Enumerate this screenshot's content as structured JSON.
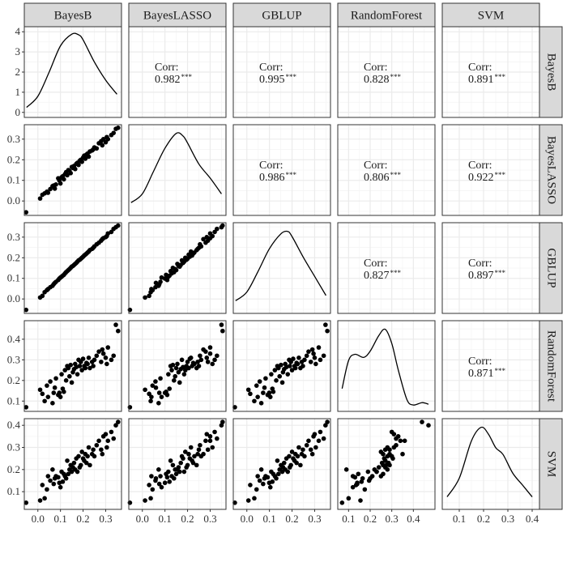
{
  "colors": {
    "strip_fill": "#d9d9d9",
    "strip_border": "#333333",
    "panel_border": "#333333",
    "grid_major": "#ebebeb",
    "grid_minor": "#f5f5f5",
    "ink": "#000000",
    "text": "#1a1a1a"
  },
  "chart_data": {
    "type": "scatter",
    "variables": [
      "BayesB",
      "BayesLASSO",
      "GBLUP",
      "RandomForest",
      "SVM"
    ],
    "corr_label": "Corr:",
    "significance": "***",
    "correlations": [
      {
        "row": "BayesB",
        "col": "BayesLASSO",
        "value": "0.982"
      },
      {
        "row": "BayesB",
        "col": "GBLUP",
        "value": "0.995"
      },
      {
        "row": "BayesB",
        "col": "RandomForest",
        "value": "0.828"
      },
      {
        "row": "BayesB",
        "col": "SVM",
        "value": "0.891"
      },
      {
        "row": "BayesLASSO",
        "col": "GBLUP",
        "value": "0.986"
      },
      {
        "row": "BayesLASSO",
        "col": "RandomForest",
        "value": "0.806"
      },
      {
        "row": "BayesLASSO",
        "col": "SVM",
        "value": "0.922"
      },
      {
        "row": "GBLUP",
        "col": "RandomForest",
        "value": "0.827"
      },
      {
        "row": "GBLUP",
        "col": "SVM",
        "value": "0.897"
      },
      {
        "row": "RandomForest",
        "col": "SVM",
        "value": "0.871"
      }
    ],
    "x_axes": [
      {
        "variable": "BayesB",
        "range": [
          -0.06,
          0.37
        ],
        "ticks": [
          "0.0",
          "0.1",
          "0.2",
          "0.3"
        ]
      },
      {
        "variable": "BayesLASSO",
        "range": [
          -0.06,
          0.37
        ],
        "ticks": [
          "0.0",
          "0.1",
          "0.2",
          "0.3"
        ]
      },
      {
        "variable": "GBLUP",
        "range": [
          -0.06,
          0.37
        ],
        "ticks": [
          "0.0",
          "0.1",
          "0.2",
          "0.3"
        ]
      },
      {
        "variable": "RandomForest",
        "range": [
          0.05,
          0.5
        ],
        "ticks": [
          "0.1",
          "0.2",
          "0.3",
          "0.4"
        ]
      },
      {
        "variable": "SVM",
        "range": [
          0.03,
          0.43
        ],
        "ticks": [
          "0.1",
          "0.2",
          "0.3",
          "0.4"
        ]
      }
    ],
    "y_axes": [
      {
        "row": "BayesB",
        "range": [
          -0.25,
          4.25
        ],
        "ticks": [
          "0",
          "1",
          "2",
          "3",
          "4"
        ]
      },
      {
        "row": "BayesLASSO",
        "range": [
          -0.07,
          0.37
        ],
        "ticks": [
          "0.0",
          "0.1",
          "0.2",
          "0.3"
        ]
      },
      {
        "row": "GBLUP",
        "range": [
          -0.07,
          0.37
        ],
        "ticks": [
          "0.0",
          "0.1",
          "0.2",
          "0.3"
        ]
      },
      {
        "row": "RandomForest",
        "range": [
          0.05,
          0.49
        ],
        "ticks": [
          "0.1",
          "0.2",
          "0.3",
          "0.4"
        ]
      },
      {
        "row": "SVM",
        "range": [
          0.02,
          0.43
        ],
        "ticks": [
          "0.1",
          "0.2",
          "0.3",
          "0.4"
        ]
      }
    ],
    "densities": [
      {
        "variable": "BayesB",
        "x": [
          -0.05,
          0.0,
          0.05,
          0.1,
          0.15,
          0.18,
          0.2,
          0.25,
          0.3,
          0.35
        ],
        "y": [
          0.25,
          0.8,
          2.0,
          3.3,
          3.88,
          3.85,
          3.6,
          2.5,
          1.6,
          0.9
        ]
      },
      {
        "variable": "BayesLASSO",
        "x": [
          -0.05,
          0.0,
          0.05,
          0.1,
          0.15,
          0.18,
          0.2,
          0.25,
          0.3,
          0.35
        ],
        "y": [
          0.5,
          1.0,
          2.3,
          3.6,
          4.45,
          4.3,
          3.9,
          2.7,
          1.9,
          1.0
        ]
      },
      {
        "variable": "GBLUP",
        "x": [
          -0.05,
          0.0,
          0.05,
          0.1,
          0.15,
          0.18,
          0.2,
          0.25,
          0.3,
          0.35
        ],
        "y": [
          0.5,
          1.0,
          2.2,
          3.5,
          4.35,
          4.5,
          4.2,
          3.0,
          1.9,
          0.8
        ]
      },
      {
        "variable": "RandomForest",
        "x": [
          0.07,
          0.1,
          0.13,
          0.17,
          0.2,
          0.24,
          0.27,
          0.3,
          0.33,
          0.37,
          0.4,
          0.44,
          0.47
        ],
        "y": [
          1.2,
          3.0,
          3.4,
          3.2,
          3.6,
          4.6,
          5.0,
          4.1,
          2.4,
          0.5,
          0.15,
          0.3,
          0.2
        ]
      },
      {
        "variable": "SVM",
        "x": [
          0.05,
          0.1,
          0.15,
          0.19,
          0.22,
          0.25,
          0.28,
          0.32,
          0.36,
          0.4
        ],
        "y": [
          0.5,
          1.6,
          3.8,
          4.6,
          4.2,
          3.4,
          3.0,
          1.9,
          1.2,
          0.5
        ]
      }
    ],
    "observations": [
      {
        "BayesB": -0.052,
        "BayesLASSO": -0.055,
        "GBLUP": -0.053,
        "RandomForest": 0.07,
        "SVM": 0.05
      },
      {
        "BayesB": 0.01,
        "BayesLASSO": 0.012,
        "GBLUP": 0.007,
        "RandomForest": 0.155,
        "SVM": 0.06
      },
      {
        "BayesB": 0.02,
        "BayesLASSO": 0.03,
        "GBLUP": 0.015,
        "RandomForest": 0.135,
        "SVM": 0.13
      },
      {
        "BayesB": 0.03,
        "BayesLASSO": 0.037,
        "GBLUP": 0.033,
        "RandomForest": 0.1,
        "SVM": 0.07
      },
      {
        "BayesB": 0.04,
        "BayesLASSO": 0.045,
        "GBLUP": 0.043,
        "RandomForest": 0.175,
        "SVM": 0.11
      },
      {
        "BayesB": 0.045,
        "BayesLASSO": 0.04,
        "GBLUP": 0.048,
        "RandomForest": 0.12,
        "SVM": 0.17
      },
      {
        "BayesB": 0.055,
        "BayesLASSO": 0.058,
        "GBLUP": 0.057,
        "RandomForest": 0.195,
        "SVM": 0.15
      },
      {
        "BayesB": 0.065,
        "BayesLASSO": 0.072,
        "GBLUP": 0.064,
        "RandomForest": 0.09,
        "SVM": 0.2
      },
      {
        "BayesB": 0.07,
        "BayesLASSO": 0.075,
        "GBLUP": 0.072,
        "RandomForest": 0.14,
        "SVM": 0.135
      },
      {
        "BayesB": 0.075,
        "BayesLASSO": 0.06,
        "GBLUP": 0.078,
        "RandomForest": 0.165,
        "SVM": 0.16
      },
      {
        "BayesB": 0.08,
        "BayesLASSO": 0.08,
        "GBLUP": 0.083,
        "RandomForest": 0.21,
        "SVM": 0.17
      },
      {
        "BayesB": 0.09,
        "BayesLASSO": 0.11,
        "GBLUP": 0.092,
        "RandomForest": 0.13,
        "SVM": 0.165
      },
      {
        "BayesB": 0.095,
        "BayesLASSO": 0.1,
        "GBLUP": 0.099,
        "RandomForest": 0.14,
        "SVM": 0.14
      },
      {
        "BayesB": 0.1,
        "BayesLASSO": 0.085,
        "GBLUP": 0.104,
        "RandomForest": 0.12,
        "SVM": 0.12
      },
      {
        "BayesB": 0.105,
        "BayesLASSO": 0.115,
        "GBLUP": 0.108,
        "RandomForest": 0.23,
        "SVM": 0.19
      },
      {
        "BayesB": 0.11,
        "BayesLASSO": 0.12,
        "GBLUP": 0.113,
        "RandomForest": 0.16,
        "SVM": 0.145
      },
      {
        "BayesB": 0.115,
        "BayesLASSO": 0.105,
        "GBLUP": 0.117,
        "RandomForest": 0.145,
        "SVM": 0.18
      },
      {
        "BayesB": 0.12,
        "BayesLASSO": 0.13,
        "GBLUP": 0.124,
        "RandomForest": 0.25,
        "SVM": 0.17
      },
      {
        "BayesB": 0.125,
        "BayesLASSO": 0.14,
        "GBLUP": 0.13,
        "RandomForest": 0.2,
        "SVM": 0.16
      },
      {
        "BayesB": 0.13,
        "BayesLASSO": 0.125,
        "GBLUP": 0.135,
        "RandomForest": 0.27,
        "SVM": 0.24
      },
      {
        "BayesB": 0.135,
        "BayesLASSO": 0.15,
        "GBLUP": 0.14,
        "RandomForest": 0.26,
        "SVM": 0.18
      },
      {
        "BayesB": 0.14,
        "BayesLASSO": 0.145,
        "GBLUP": 0.145,
        "RandomForest": 0.22,
        "SVM": 0.2
      },
      {
        "BayesB": 0.145,
        "BayesLASSO": 0.135,
        "GBLUP": 0.151,
        "RandomForest": 0.275,
        "SVM": 0.22
      },
      {
        "BayesB": 0.15,
        "BayesLASSO": 0.165,
        "GBLUP": 0.157,
        "RandomForest": 0.19,
        "SVM": 0.19
      },
      {
        "BayesB": 0.155,
        "BayesLASSO": 0.16,
        "GBLUP": 0.16,
        "RandomForest": 0.24,
        "SVM": 0.21
      },
      {
        "BayesB": 0.16,
        "BayesLASSO": 0.17,
        "GBLUP": 0.165,
        "RandomForest": 0.255,
        "SVM": 0.23
      },
      {
        "BayesB": 0.165,
        "BayesLASSO": 0.155,
        "GBLUP": 0.17,
        "RandomForest": 0.28,
        "SVM": 0.2
      },
      {
        "BayesB": 0.17,
        "BayesLASSO": 0.18,
        "GBLUP": 0.175,
        "RandomForest": 0.265,
        "SVM": 0.25
      },
      {
        "BayesB": 0.175,
        "BayesLASSO": 0.185,
        "GBLUP": 0.181,
        "RandomForest": 0.23,
        "SVM": 0.19
      },
      {
        "BayesB": 0.18,
        "BayesLASSO": 0.175,
        "GBLUP": 0.187,
        "RandomForest": 0.3,
        "SVM": 0.26
      },
      {
        "BayesB": 0.185,
        "BayesLASSO": 0.195,
        "GBLUP": 0.19,
        "RandomForest": 0.27,
        "SVM": 0.21
      },
      {
        "BayesB": 0.19,
        "BayesLASSO": 0.2,
        "GBLUP": 0.195,
        "RandomForest": 0.29,
        "SVM": 0.22
      },
      {
        "BayesB": 0.195,
        "BayesLASSO": 0.19,
        "GBLUP": 0.2,
        "RandomForest": 0.25,
        "SVM": 0.28
      },
      {
        "BayesB": 0.2,
        "BayesLASSO": 0.21,
        "GBLUP": 0.205,
        "RandomForest": 0.305,
        "SVM": 0.25
      },
      {
        "BayesB": 0.205,
        "BayesLASSO": 0.22,
        "GBLUP": 0.211,
        "RandomForest": 0.27,
        "SVM": 0.24
      },
      {
        "BayesB": 0.21,
        "BayesLASSO": 0.205,
        "GBLUP": 0.215,
        "RandomForest": 0.26,
        "SVM": 0.27
      },
      {
        "BayesB": 0.215,
        "BayesLASSO": 0.225,
        "GBLUP": 0.22,
        "RandomForest": 0.285,
        "SVM": 0.23
      },
      {
        "BayesB": 0.22,
        "BayesLASSO": 0.23,
        "GBLUP": 0.225,
        "RandomForest": 0.28,
        "SVM": 0.26
      },
      {
        "BayesB": 0.225,
        "BayesLASSO": 0.215,
        "GBLUP": 0.23,
        "RandomForest": 0.31,
        "SVM": 0.3
      },
      {
        "BayesB": 0.23,
        "BayesLASSO": 0.24,
        "GBLUP": 0.237,
        "RandomForest": 0.26,
        "SVM": 0.22
      },
      {
        "BayesB": 0.24,
        "BayesLASSO": 0.245,
        "GBLUP": 0.243,
        "RandomForest": 0.29,
        "SVM": 0.27
      },
      {
        "BayesB": 0.245,
        "BayesLASSO": 0.25,
        "GBLUP": 0.248,
        "RandomForest": 0.27,
        "SVM": 0.29
      },
      {
        "BayesB": 0.25,
        "BayesLASSO": 0.26,
        "GBLUP": 0.255,
        "RandomForest": 0.3,
        "SVM": 0.26
      },
      {
        "BayesB": 0.26,
        "BayesLASSO": 0.255,
        "GBLUP": 0.265,
        "RandomForest": 0.32,
        "SVM": 0.31
      },
      {
        "BayesB": 0.27,
        "BayesLASSO": 0.28,
        "GBLUP": 0.273,
        "RandomForest": 0.34,
        "SVM": 0.33
      },
      {
        "BayesB": 0.28,
        "BayesLASSO": 0.29,
        "GBLUP": 0.283,
        "RandomForest": 0.29,
        "SVM": 0.29
      },
      {
        "BayesB": 0.285,
        "BayesLASSO": 0.27,
        "GBLUP": 0.29,
        "RandomForest": 0.35,
        "SVM": 0.27
      },
      {
        "BayesB": 0.29,
        "BayesLASSO": 0.3,
        "GBLUP": 0.295,
        "RandomForest": 0.33,
        "SVM": 0.35
      },
      {
        "BayesB": 0.3,
        "BayesLASSO": 0.285,
        "GBLUP": 0.3,
        "RandomForest": 0.31,
        "SVM": 0.36
      },
      {
        "BayesB": 0.305,
        "BayesLASSO": 0.31,
        "GBLUP": 0.305,
        "RandomForest": 0.28,
        "SVM": 0.3
      },
      {
        "BayesB": 0.31,
        "BayesLASSO": 0.3,
        "GBLUP": 0.318,
        "RandomForest": 0.36,
        "SVM": 0.33
      },
      {
        "BayesB": 0.325,
        "BayesLASSO": 0.32,
        "GBLUP": 0.325,
        "RandomForest": 0.3,
        "SVM": 0.37
      },
      {
        "BayesB": 0.335,
        "BayesLASSO": 0.33,
        "GBLUP": 0.34,
        "RandomForest": 0.32,
        "SVM": 0.34
      },
      {
        "BayesB": 0.345,
        "BayesLASSO": 0.35,
        "GBLUP": 0.348,
        "RandomForest": 0.47,
        "SVM": 0.4
      },
      {
        "BayesB": 0.355,
        "BayesLASSO": 0.355,
        "GBLUP": 0.356,
        "RandomForest": 0.44,
        "SVM": 0.415
      }
    ]
  }
}
